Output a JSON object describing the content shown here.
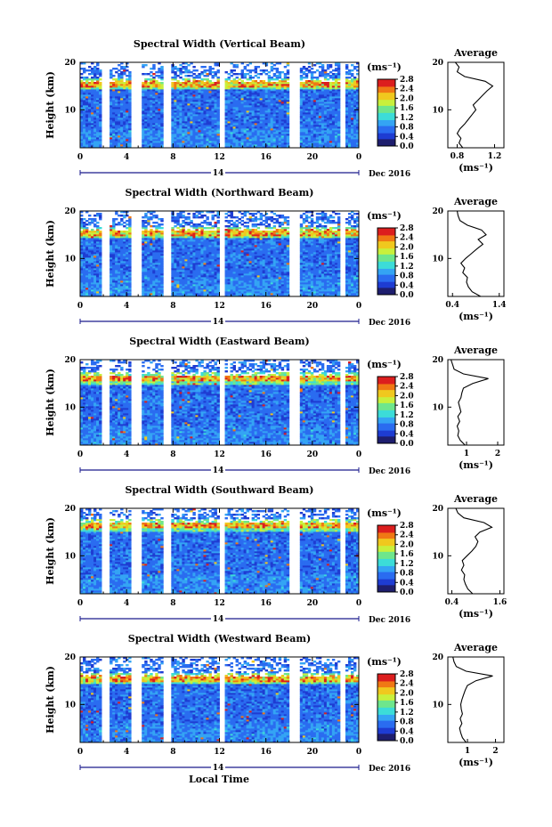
{
  "figure": {
    "date_label": "Dec 2016",
    "day_label": "14",
    "xlabel": "Local Time",
    "ylabel": "Height (km)",
    "unit": "(ms⁻¹)",
    "avg_title": "Average",
    "avg_xunit": "(ms⁻¹)",
    "xticks": [
      "0",
      "4",
      "8",
      "12",
      "16",
      "20",
      "0"
    ],
    "yticks": [
      "10",
      "20"
    ],
    "cbar_ticks": [
      "0.0",
      "0.4",
      "0.8",
      "1.2",
      "1.6",
      "2.0",
      "2.4",
      "2.8"
    ],
    "colors": {
      "scale": [
        "#1e1e6e",
        "#1e3cd2",
        "#2a6cf0",
        "#34a4f4",
        "#3cdcd8",
        "#6ee68c",
        "#c8f03c",
        "#f0c81e",
        "#f07814",
        "#dc1e1e"
      ]
    }
  },
  "chart_data": [
    {
      "type": "heatmap",
      "title": "Spectral Width (Vertical Beam)",
      "x_range": [
        0,
        24
      ],
      "y_range": [
        2,
        20
      ],
      "clim": [
        0.0,
        2.8
      ],
      "data_gaps_hours": [
        [
          1.9,
          2.5
        ],
        [
          4.5,
          5.2
        ],
        [
          7.1,
          7.8
        ],
        [
          12.0,
          12.4
        ],
        [
          17.9,
          19.0
        ],
        [
          22.3,
          22.8
        ]
      ],
      "tropopause_km": 15.5,
      "avg_profile": {
        "xticks": [
          "0.8",
          "1.2"
        ],
        "x_range": [
          0.7,
          1.3
        ],
        "height_km": [
          2,
          3,
          4,
          5,
          6,
          7,
          8,
          9,
          10,
          11,
          12,
          13,
          14,
          15,
          16,
          17,
          18,
          19,
          20
        ],
        "value": [
          0.86,
          0.82,
          0.84,
          0.8,
          0.83,
          0.88,
          0.92,
          0.96,
          1.0,
          0.97,
          1.02,
          1.07,
          1.12,
          1.18,
          1.1,
          0.88,
          0.8,
          0.82,
          0.78
        ]
      }
    },
    {
      "type": "heatmap",
      "title": "Spectral Width (Northward Beam)",
      "x_range": [
        0,
        24
      ],
      "y_range": [
        2,
        20
      ],
      "clim": [
        0.0,
        2.8
      ],
      "data_gaps_hours": [
        [
          1.9,
          2.5
        ],
        [
          4.5,
          5.2
        ],
        [
          7.1,
          7.8
        ],
        [
          12.0,
          12.4
        ],
        [
          17.9,
          19.0
        ],
        [
          22.3,
          22.8
        ]
      ],
      "tropopause_km": 15.5,
      "avg_profile": {
        "xticks": [
          "0.4",
          "1.4"
        ],
        "x_range": [
          0.3,
          1.5
        ],
        "height_km": [
          2,
          3,
          4,
          5,
          6,
          7,
          8,
          9,
          10,
          11,
          12,
          13,
          14,
          15,
          16,
          17,
          18,
          19,
          20
        ],
        "value": [
          1.0,
          0.82,
          0.74,
          0.7,
          0.72,
          0.62,
          0.66,
          0.58,
          0.68,
          0.8,
          0.92,
          1.05,
          0.95,
          1.12,
          1.02,
          0.72,
          0.56,
          0.52,
          0.5
        ]
      }
    },
    {
      "type": "heatmap",
      "title": "Spectral Width (Eastward Beam)",
      "x_range": [
        0,
        24
      ],
      "y_range": [
        2,
        20
      ],
      "clim": [
        0.0,
        2.8
      ],
      "data_gaps_hours": [
        [
          1.9,
          2.5
        ],
        [
          4.5,
          5.2
        ],
        [
          7.1,
          7.8
        ],
        [
          12.0,
          12.4
        ],
        [
          17.9,
          19.0
        ],
        [
          22.3,
          22.8
        ]
      ],
      "tropopause_km": 16.0,
      "avg_profile": {
        "xticks": [
          "1",
          "2"
        ],
        "x_range": [
          0.4,
          2.2
        ],
        "height_km": [
          2,
          3,
          4,
          5,
          6,
          7,
          8,
          9,
          10,
          11,
          12,
          13,
          14,
          15,
          16,
          17,
          18,
          19,
          20
        ],
        "value": [
          0.95,
          0.8,
          0.72,
          0.75,
          0.7,
          0.78,
          0.72,
          0.82,
          0.78,
          0.74,
          0.82,
          0.85,
          0.9,
          1.2,
          1.7,
          0.9,
          0.6,
          0.55,
          0.5
        ]
      }
    },
    {
      "type": "heatmap",
      "title": "Spectral Width (Southward Beam)",
      "x_range": [
        0,
        24
      ],
      "y_range": [
        2,
        20
      ],
      "clim": [
        0.0,
        2.8
      ],
      "data_gaps_hours": [
        [
          1.9,
          2.5
        ],
        [
          4.5,
          5.2
        ],
        [
          7.1,
          7.8
        ],
        [
          12.0,
          12.4
        ],
        [
          17.9,
          19.0
        ],
        [
          22.3,
          22.8
        ]
      ],
      "tropopause_km": 16.5,
      "avg_profile": {
        "xticks": [
          "0.4",
          "1.6"
        ],
        "x_range": [
          0.3,
          1.7
        ],
        "height_km": [
          2,
          3,
          4,
          5,
          6,
          7,
          8,
          9,
          10,
          11,
          12,
          13,
          14,
          15,
          16,
          17,
          18,
          19,
          20
        ],
        "value": [
          0.92,
          0.8,
          0.74,
          0.7,
          0.72,
          0.64,
          0.7,
          0.66,
          0.78,
          0.9,
          1.0,
          1.05,
          0.98,
          1.1,
          1.4,
          1.2,
          0.7,
          0.55,
          0.5
        ]
      }
    },
    {
      "type": "heatmap",
      "title": "Spectral Width (Westward Beam)",
      "x_range": [
        0,
        24
      ],
      "y_range": [
        2,
        20
      ],
      "clim": [
        0.0,
        2.8
      ],
      "data_gaps_hours": [
        [
          1.9,
          2.5
        ],
        [
          4.5,
          5.2
        ],
        [
          7.1,
          7.8
        ],
        [
          12.0,
          12.4
        ],
        [
          17.9,
          19.0
        ],
        [
          22.3,
          22.8
        ]
      ],
      "tropopause_km": 15.5,
      "avg_profile": {
        "xticks": [
          "1",
          "2"
        ],
        "x_range": [
          0.3,
          2.3
        ],
        "height_km": [
          2,
          3,
          4,
          5,
          6,
          7,
          8,
          9,
          10,
          11,
          12,
          13,
          14,
          15,
          16,
          17,
          18,
          19,
          20
        ],
        "value": [
          0.95,
          0.82,
          0.76,
          0.72,
          0.8,
          0.74,
          0.82,
          0.78,
          0.76,
          0.8,
          0.86,
          0.92,
          1.0,
          1.3,
          1.9,
          0.95,
          0.6,
          0.52,
          0.48
        ]
      }
    }
  ]
}
